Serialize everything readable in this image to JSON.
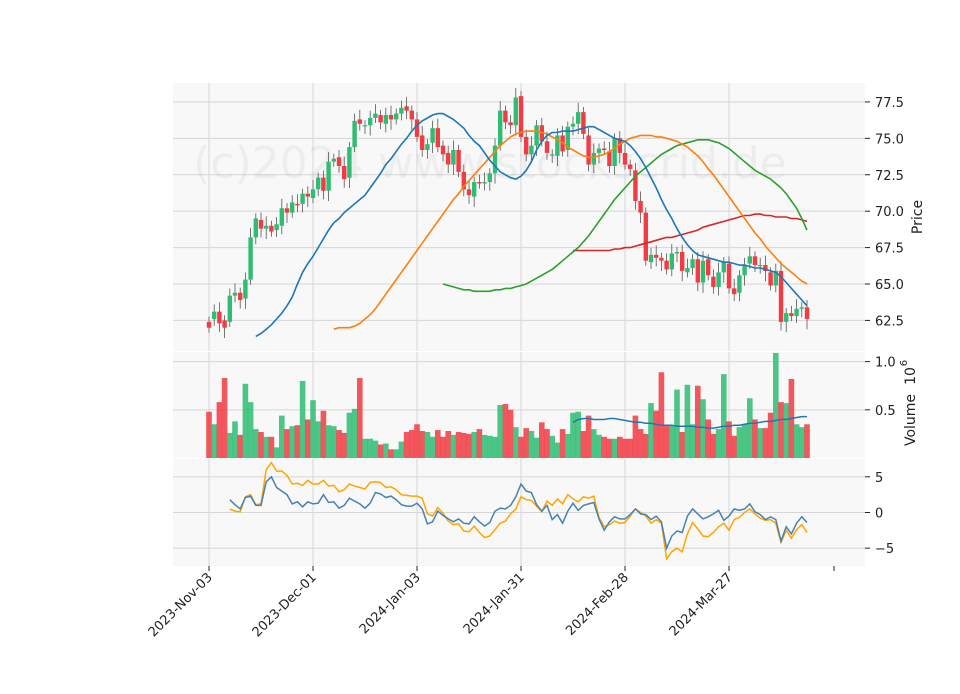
{
  "watermark": "(c)2024 www.stockscrid.de",
  "colors": {
    "up": "#2ebd72",
    "down": "#f23b43",
    "ma_fast": "#1f77b4",
    "ma_mid": "#ff7f0e",
    "ma_slow": "#2ca02c",
    "ma_long": "#d62728",
    "vol_avg": "#1f77b4",
    "macd": "#4682b4",
    "signal": "#ffa500",
    "panel_bg": "#f8f8f8",
    "grid": "#d6d6d6"
  },
  "chart_data": [
    {
      "panel": "price",
      "type": "candlestick",
      "ylabel": "Price",
      "ylim": [
        60.4,
        78.8
      ],
      "yticks": [
        "62.5",
        "65.0",
        "67.5",
        "70.0",
        "72.5",
        "75.0",
        "77.5"
      ],
      "xticks": [
        "2023-Nov-03",
        "2023-Dec-01",
        "2024-Jan-03",
        "2024-Jan-31",
        "2024-Feb-28",
        "2024-Mar-27"
      ],
      "xtick_index": [
        0,
        20,
        40,
        60,
        80,
        100
      ],
      "closes": [
        62.0,
        63.1,
        62.3,
        62.0,
        64.2,
        64.4,
        63.9,
        65.3,
        68.2,
        69.5,
        68.8,
        69.0,
        68.6,
        69.1,
        70.2,
        69.9,
        70.6,
        70.4,
        71.2,
        71.0,
        71.5,
        72.3,
        71.4,
        73.4,
        73.6,
        73.1,
        72.2,
        74.4,
        76.2,
        76.0,
        75.9,
        76.4,
        76.7,
        76.1,
        76.6,
        76.3,
        76.7,
        77.1,
        76.9,
        76.3,
        75.1,
        74.2,
        74.6,
        75.7,
        74.4,
        73.9,
        73.2,
        74.2,
        72.7,
        71.5,
        71.1,
        72.0,
        71.9,
        72.0,
        72.6,
        74.5,
        76.9,
        76.1,
        75.9,
        77.8,
        75.1,
        73.9,
        74.5,
        75.9,
        74.8,
        74.0,
        73.9,
        75.2,
        74.1,
        75.8,
        76.0,
        76.8,
        75.3,
        73.2,
        74.0,
        74.3,
        74.2,
        73.1,
        75.0,
        74.0,
        73.2,
        72.9,
        70.7,
        69.9,
        66.6,
        67.0,
        66.8,
        66.6,
        66.0,
        67.1,
        67.2,
        65.9,
        66.1,
        66.7,
        65.1,
        66.6,
        65.6,
        64.8,
        65.8,
        66.5,
        64.7,
        64.3,
        65.6,
        66.3,
        66.9,
        66.3,
        66.3,
        65.9,
        64.9,
        65.9,
        62.4,
        63.0,
        62.8,
        63.3,
        63.4,
        62.6
      ],
      "opens": [
        62.4,
        62.6,
        63.1,
        62.5,
        62.4,
        64.2,
        64.4,
        64.0,
        65.3,
        68.2,
        69.4,
        68.8,
        69.0,
        68.7,
        69.0,
        70.2,
        69.9,
        70.5,
        70.5,
        71.2,
        70.9,
        71.5,
        72.3,
        71.4,
        73.4,
        73.7,
        73.1,
        72.3,
        74.4,
        76.3,
        75.9,
        75.9,
        76.4,
        76.6,
        76.0,
        76.6,
        76.3,
        76.7,
        77.2,
        76.9,
        76.3,
        75.2,
        74.2,
        74.7,
        75.7,
        74.5,
        74.0,
        73.2,
        74.2,
        72.7,
        71.5,
        71.0,
        72.0,
        71.9,
        72.0,
        72.6,
        74.5,
        76.9,
        76.1,
        75.9,
        77.9,
        75.1,
        73.9,
        74.5,
        75.9,
        74.8,
        73.9,
        73.8,
        75.2,
        74.2,
        75.8,
        76.0,
        76.8,
        75.2,
        73.2,
        74.0,
        74.3,
        74.1,
        73.1,
        75.0,
        74.0,
        73.2,
        72.8,
        70.7,
        69.9,
        66.5,
        67.0,
        66.8,
        66.6,
        66.0,
        67.1,
        67.2,
        65.8,
        66.1,
        66.7,
        65.1,
        66.7,
        65.5,
        64.8,
        65.8,
        66.4,
        64.7,
        64.4,
        65.6,
        66.4,
        66.9,
        66.3,
        66.3,
        65.8,
        64.9,
        65.9,
        62.4,
        63.0,
        62.8,
        63.3,
        63.4
      ],
      "volumes": [
        0.48,
        0.35,
        0.58,
        0.83,
        0.26,
        0.38,
        0.24,
        0.77,
        0.58,
        0.3,
        0.27,
        0.22,
        0.22,
        0.11,
        0.44,
        0.3,
        0.33,
        0.34,
        0.8,
        0.4,
        0.6,
        0.38,
        0.49,
        0.34,
        0.33,
        0.29,
        0.26,
        0.47,
        0.51,
        0.83,
        0.2,
        0.2,
        0.18,
        0.14,
        0.15,
        0.09,
        0.09,
        0.17,
        0.27,
        0.29,
        0.35,
        0.28,
        0.27,
        0.22,
        0.29,
        0.22,
        0.28,
        0.24,
        0.27,
        0.26,
        0.25,
        0.27,
        0.3,
        0.24,
        0.23,
        0.22,
        0.55,
        0.56,
        0.5,
        0.32,
        0.22,
        0.31,
        0.28,
        0.21,
        0.37,
        0.3,
        0.23,
        0.16,
        0.3,
        0.25,
        0.47,
        0.48,
        0.28,
        0.44,
        0.3,
        0.24,
        0.22,
        0.2,
        0.2,
        0.22,
        0.2,
        0.2,
        0.44,
        0.3,
        0.25,
        0.57,
        0.49,
        0.89,
        0.34,
        0.34,
        0.71,
        0.27,
        0.76,
        0.35,
        0.75,
        0.61,
        0.4,
        0.25,
        0.3,
        0.87,
        0.38,
        0.23,
        0.32,
        0.35,
        0.62,
        0.4,
        0.31,
        0.31,
        0.47,
        1.09,
        0.58,
        0.57,
        0.82,
        0.35,
        0.32,
        0.35
      ],
      "ma_fast": [
        61.4,
        61.6,
        61.9,
        62.2,
        62.6,
        63.0,
        63.5,
        64.1,
        65.0,
        65.8,
        66.4,
        66.9,
        67.5,
        68.1,
        68.7,
        69.2,
        69.5,
        69.9,
        70.2,
        70.5,
        70.8,
        71.1,
        71.6,
        72.1,
        72.6,
        73.2,
        73.6,
        74.1,
        74.6,
        75.0,
        75.5,
        75.9,
        76.2,
        76.4,
        76.6,
        76.7,
        76.7,
        76.5,
        76.3,
        76.0,
        75.7,
        75.2,
        74.8,
        74.5,
        74.0,
        73.5,
        73.1,
        72.7,
        72.5,
        72.3,
        72.2,
        72.4,
        72.8,
        73.4,
        74.2,
        74.8,
        75.2,
        75.4,
        75.4,
        75.5,
        75.5,
        75.5,
        75.6,
        75.7,
        75.8,
        75.8,
        75.6,
        75.4,
        75.2,
        75.0,
        74.9,
        74.8,
        74.5,
        74.1,
        73.6,
        73.0,
        72.3,
        71.6,
        70.8,
        70.1,
        69.5,
        68.8,
        68.2,
        67.7,
        67.3,
        67.0,
        66.9,
        66.8,
        66.7,
        66.6,
        66.5,
        66.5,
        66.4,
        66.3,
        66.3,
        66.2,
        66.1,
        66.1,
        66.0,
        65.9,
        65.8,
        65.5,
        65.1,
        64.7,
        64.3,
        63.9,
        63.5
      ],
      "ma_mid": [
        61.9,
        62.0,
        62.0,
        62.0,
        62.1,
        62.3,
        62.6,
        62.9,
        63.3,
        63.8,
        64.3,
        64.8,
        65.3,
        65.8,
        66.3,
        66.8,
        67.3,
        67.8,
        68.3,
        68.8,
        69.3,
        69.8,
        70.3,
        70.8,
        71.2,
        71.7,
        72.1,
        72.5,
        72.9,
        73.3,
        73.7,
        74.1,
        74.5,
        74.8,
        75.1,
        75.3,
        75.4,
        75.5,
        75.5,
        75.5,
        75.4,
        75.3,
        75.1,
        74.9,
        74.7,
        74.4,
        74.2,
        74.0,
        73.8,
        73.7,
        73.7,
        73.8,
        73.9,
        74.1,
        74.3,
        74.6,
        74.8,
        75.0,
        75.1,
        75.2,
        75.2,
        75.2,
        75.1,
        75.1,
        75.0,
        74.9,
        74.8,
        74.6,
        74.4,
        74.1,
        73.8,
        73.4,
        72.9,
        72.5,
        72.0,
        71.5,
        71.0,
        70.5,
        70.0,
        69.5,
        69.0,
        68.5,
        68.1,
        67.6,
        67.2,
        66.8,
        66.4,
        66.1,
        65.8,
        65.5,
        65.2,
        65.0
      ],
      "ma_slow": [
        65.0,
        64.9,
        64.8,
        64.7,
        64.6,
        64.6,
        64.5,
        64.5,
        64.5,
        64.5,
        64.6,
        64.6,
        64.7,
        64.7,
        64.8,
        64.9,
        65.0,
        65.2,
        65.4,
        65.6,
        65.8,
        66.0,
        66.3,
        66.6,
        66.9,
        67.2,
        67.5,
        67.9,
        68.3,
        68.8,
        69.3,
        69.8,
        70.3,
        70.8,
        71.2,
        71.6,
        72.0,
        72.4,
        72.7,
        73.0,
        73.3,
        73.6,
        73.9,
        74.1,
        74.3,
        74.5,
        74.6,
        74.7,
        74.8,
        74.9,
        74.9,
        74.9,
        74.8,
        74.7,
        74.5,
        74.3,
        74.0,
        73.7,
        73.4,
        73.1,
        72.8,
        72.6,
        72.4,
        72.2,
        71.9,
        71.6,
        71.2,
        70.7,
        70.2,
        69.5,
        68.7
      ],
      "ma_long": [
        67.3,
        67.3,
        67.3,
        67.3,
        67.3,
        67.3,
        67.3,
        67.3,
        67.4,
        67.4,
        67.5,
        67.5,
        67.6,
        67.7,
        67.8,
        67.9,
        68.0,
        68.1,
        68.2,
        68.2,
        68.3,
        68.4,
        68.5,
        68.6,
        68.7,
        68.9,
        69.0,
        69.1,
        69.2,
        69.3,
        69.4,
        69.5,
        69.6,
        69.7,
        69.7,
        69.8,
        69.8,
        69.7,
        69.7,
        69.6,
        69.6,
        69.6,
        69.5,
        69.5,
        69.4,
        69.3
      ],
      "vol_avg": [
        0.37,
        0.4,
        0.41,
        0.41,
        0.4,
        0.4,
        0.4,
        0.41,
        0.41,
        0.4,
        0.39,
        0.38,
        0.37,
        0.37,
        0.36,
        0.36,
        0.35,
        0.34,
        0.34,
        0.34,
        0.33,
        0.33,
        0.33,
        0.33,
        0.32,
        0.32,
        0.31,
        0.31,
        0.32,
        0.33,
        0.33,
        0.34,
        0.34,
        0.35,
        0.36,
        0.36,
        0.37,
        0.38,
        0.38,
        0.39,
        0.4,
        0.4,
        0.41,
        0.42,
        0.43,
        0.43
      ],
      "volume_label": "Volume",
      "volume_exponent": "6",
      "volume_ylim": [
        0,
        1.1
      ],
      "volume_yticks": [
        "0.5",
        "1.0"
      ],
      "osc_ylim": [
        -7.5,
        7.5
      ],
      "osc_yticks": [
        "−5",
        "0",
        "5"
      ],
      "macd": [
        1.8,
        1.1,
        0.5,
        2.1,
        2.3,
        1.0,
        1.0,
        4.3,
        5.0,
        3.5,
        3.0,
        2.5,
        1.2,
        1.5,
        0.8,
        1.5,
        1.2,
        1.3,
        2.5,
        1.4,
        1.5,
        0.6,
        1.0,
        2.0,
        1.6,
        1.2,
        0.6,
        1.3,
        2.8,
        2.6,
        2.1,
        2.3,
        1.8,
        1.1,
        0.9,
        0.9,
        1.3,
        0.5,
        -1.6,
        -1.3,
        0.2,
        -0.4,
        -0.9,
        -1.3,
        -0.9,
        -1.5,
        -1.6,
        -0.6,
        -1.3,
        -1.9,
        -1.4,
        0.2,
        0.6,
        0.5,
        1.0,
        2.2,
        4.0,
        3.0,
        2.8,
        1.1,
        0.2,
        1.0,
        -1.0,
        -0.3,
        -1.5,
        0.2,
        1.3,
        0.3,
        1.0,
        1.2,
        1.4,
        -0.9,
        -2.5,
        -1.3,
        -0.6,
        -0.9,
        -0.9,
        -0.3,
        0.5,
        -0.2,
        -0.3,
        -1.0,
        -0.5,
        -1.3,
        -5.0,
        -3.3,
        -2.6,
        -2.8,
        -0.5,
        0.5,
        -0.2,
        -0.9,
        -0.6,
        -0.2,
        0.3,
        -1.1,
        -0.5,
        0.5,
        0.3,
        0.5,
        1.2,
        0.1,
        -0.3,
        -1.0,
        -0.6,
        -1.0,
        -4.0,
        -2.0,
        -3.0,
        -1.5,
        -0.6,
        -1.4
      ],
      "signal": [
        0.5,
        0.2,
        0.1,
        2.2,
        2.5,
        1.1,
        1.2,
        6.0,
        7.0,
        5.8,
        5.8,
        5.2,
        4.0,
        4.1,
        3.8,
        4.5,
        4.0,
        4.0,
        4.5,
        3.7,
        3.8,
        2.9,
        3.2,
        4.0,
        3.7,
        3.5,
        3.3,
        4.2,
        4.3,
        4.2,
        3.5,
        3.6,
        3.2,
        2.5,
        2.4,
        2.3,
        2.3,
        2.0,
        -0.2,
        -0.5,
        0.7,
        -0.1,
        -1.2,
        -1.7,
        -1.6,
        -2.6,
        -2.7,
        -1.9,
        -2.8,
        -3.5,
        -3.3,
        -2.4,
        -1.5,
        -1.2,
        -0.2,
        0.5,
        2.2,
        1.8,
        1.7,
        0.9,
        0.1,
        1.6,
        1.0,
        1.9,
        1.2,
        2.5,
        1.9,
        1.5,
        2.2,
        2.0,
        2.3,
        -0.7,
        -2.0,
        -1.7,
        -1.2,
        -1.5,
        -1.4,
        -0.5,
        0.5,
        0.0,
        -0.5,
        -1.5,
        -1.0,
        -1.5,
        -6.5,
        -5.5,
        -5.0,
        -5.5,
        -3.0,
        -1.4,
        -2.3,
        -3.3,
        -3.4,
        -2.8,
        -2.0,
        -1.5,
        -2.5,
        -1.0,
        -0.7,
        0.0,
        0.5,
        -0.2,
        -0.8,
        -1.1,
        -1.0,
        -1.5,
        -4.2,
        -2.5,
        -3.6,
        -2.4,
        -1.7,
        -2.8
      ]
    }
  ]
}
